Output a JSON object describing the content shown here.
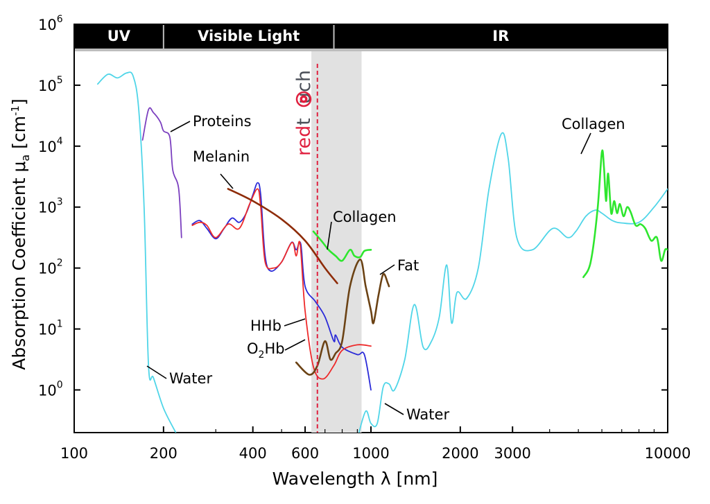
{
  "chart_data": {
    "type": "line",
    "title": "",
    "xlabel": "Wavelength λ [nm]",
    "ylabel": "Absorption Coefficient μa [cm-1]",
    "ylabel_parts": {
      "main": "Absorption Coefficient μ",
      "sub": "a",
      "unit": " [cm",
      "exp": "-1",
      "close": "]"
    },
    "xscale": "log",
    "yscale": "log",
    "xlim": [
      100,
      10000
    ],
    "ylim_exp": [
      -0.7,
      6
    ],
    "x_ticks": [
      {
        "value": 100,
        "label": "100"
      },
      {
        "value": 200,
        "label": "200"
      },
      {
        "value": 400,
        "label": "400"
      },
      {
        "value": 600,
        "label": "600"
      },
      {
        "value": 1000,
        "label": "1000"
      },
      {
        "value": 2000,
        "label": "2000"
      },
      {
        "value": 3000,
        "label": "3000"
      },
      {
        "value": 10000,
        "label": "10000"
      }
    ],
    "y_ticks": [
      {
        "exp": 0,
        "base": "10",
        "sup": "0"
      },
      {
        "exp": 1,
        "base": "10",
        "sup": "1"
      },
      {
        "exp": 2,
        "base": "10",
        "sup": "2"
      },
      {
        "exp": 3,
        "base": "10",
        "sup": "3"
      },
      {
        "exp": 4,
        "base": "10",
        "sup": "4"
      },
      {
        "exp": 5,
        "base": "10",
        "sup": "5"
      },
      {
        "exp": 6,
        "base": "10",
        "sup": "6"
      }
    ],
    "bands": [
      {
        "label": "UV",
        "from": 100,
        "to": 200
      },
      {
        "label": "Visible Light",
        "from": 200,
        "to": 750
      },
      {
        "label": "IR",
        "from": 750,
        "to": 10000
      }
    ],
    "highlight_region": {
      "from": 630,
      "to": 930,
      "color": "#e1e1e1"
    },
    "marker_line": {
      "wavelength": 660,
      "color": "#e0203f"
    },
    "brand": {
      "part1": "red",
      "part2": "t",
      "part3": "uch",
      "color1": "#e0203f",
      "color2": "#4a4e57"
    },
    "series": [
      {
        "name": "Water",
        "color": "#4fd5e8",
        "points": [
          [
            120,
            5.02
          ],
          [
            130,
            5.18
          ],
          [
            140,
            5.12
          ],
          [
            150,
            5.2
          ],
          [
            158,
            5.15
          ],
          [
            165,
            4.6
          ],
          [
            172,
            3.0
          ],
          [
            178,
            0.4
          ],
          [
            185,
            0.2
          ],
          [
            200,
            -0.3
          ],
          [
            220,
            -0.7
          ]
        ]
      },
      {
        "name": "Water",
        "color": "#4fd5e8",
        "points": [
          [
            900,
            -0.8
          ],
          [
            960,
            -0.35
          ],
          [
            1000,
            -0.55
          ],
          [
            1050,
            -0.55
          ],
          [
            1100,
            0.05
          ],
          [
            1150,
            0.1
          ],
          [
            1200,
            0.0
          ],
          [
            1300,
            0.5
          ],
          [
            1400,
            1.4
          ],
          [
            1500,
            0.7
          ],
          [
            1600,
            0.8
          ],
          [
            1700,
            1.2
          ],
          [
            1800,
            2.05
          ],
          [
            1870,
            1.1
          ],
          [
            1950,
            1.6
          ],
          [
            2100,
            1.5
          ],
          [
            2300,
            2.0
          ],
          [
            2500,
            3.3
          ],
          [
            2750,
            4.2
          ],
          [
            2900,
            3.8
          ],
          [
            3100,
            2.5
          ],
          [
            3500,
            2.3
          ],
          [
            4100,
            2.65
          ],
          [
            4600,
            2.5
          ],
          [
            4900,
            2.6
          ],
          [
            5300,
            2.85
          ],
          [
            5700,
            2.95
          ],
          [
            6000,
            2.9
          ],
          [
            6500,
            2.78
          ],
          [
            7000,
            2.74
          ],
          [
            8000,
            2.75
          ],
          [
            9000,
            3.0
          ],
          [
            10000,
            3.3
          ]
        ]
      },
      {
        "name": "Proteins",
        "color": "#7b3fbf",
        "points": [
          [
            170,
            4.1
          ],
          [
            178,
            4.6
          ],
          [
            185,
            4.55
          ],
          [
            195,
            4.4
          ],
          [
            200,
            4.25
          ],
          [
            210,
            4.15
          ],
          [
            215,
            3.6
          ],
          [
            225,
            3.3
          ],
          [
            230,
            2.5
          ]
        ]
      },
      {
        "name": "HHb",
        "color": "#2a2ad8",
        "points": [
          [
            250,
            2.72
          ],
          [
            265,
            2.78
          ],
          [
            280,
            2.65
          ],
          [
            300,
            2.48
          ],
          [
            320,
            2.65
          ],
          [
            340,
            2.82
          ],
          [
            360,
            2.75
          ],
          [
            380,
            2.9
          ],
          [
            400,
            3.2
          ],
          [
            415,
            3.4
          ],
          [
            425,
            3.2
          ],
          [
            440,
            2.2
          ],
          [
            460,
            1.95
          ],
          [
            500,
            2.1
          ],
          [
            540,
            2.42
          ],
          [
            560,
            2.3
          ],
          [
            580,
            2.4
          ],
          [
            600,
            1.7
          ],
          [
            650,
            1.45
          ],
          [
            700,
            1.2
          ],
          [
            750,
            0.8
          ],
          [
            760,
            0.9
          ],
          [
            800,
            0.7
          ],
          [
            900,
            0.58
          ],
          [
            950,
            0.58
          ],
          [
            1000,
            0.0
          ]
        ]
      },
      {
        "name": "O2Hb",
        "color": "#ee2a2a",
        "points": [
          [
            250,
            2.7
          ],
          [
            265,
            2.75
          ],
          [
            280,
            2.7
          ],
          [
            300,
            2.5
          ],
          [
            330,
            2.72
          ],
          [
            360,
            2.65
          ],
          [
            390,
            3.05
          ],
          [
            415,
            3.3
          ],
          [
            425,
            3.0
          ],
          [
            440,
            2.1
          ],
          [
            470,
            2.0
          ],
          [
            500,
            2.1
          ],
          [
            542,
            2.42
          ],
          [
            560,
            2.2
          ],
          [
            577,
            2.4
          ],
          [
            600,
            1.3
          ],
          [
            640,
            0.38
          ],
          [
            690,
            0.18
          ],
          [
            750,
            0.4
          ],
          [
            800,
            0.65
          ],
          [
            900,
            0.74
          ],
          [
            1000,
            0.72
          ]
        ]
      },
      {
        "name": "Melanin",
        "color": "#8e2c08",
        "points": [
          [
            330,
            3.3
          ],
          [
            400,
            3.1
          ],
          [
            500,
            2.8
          ],
          [
            600,
            2.45
          ],
          [
            700,
            2.0
          ],
          [
            770,
            1.75
          ]
        ]
      },
      {
        "name": "Collagen",
        "color": "#2ee62e",
        "points": [
          [
            640,
            2.6
          ],
          [
            680,
            2.45
          ],
          [
            720,
            2.3
          ],
          [
            760,
            2.2
          ],
          [
            800,
            2.12
          ],
          [
            850,
            2.3
          ],
          [
            880,
            2.2
          ],
          [
            920,
            2.18
          ],
          [
            950,
            2.28
          ],
          [
            1000,
            2.3
          ]
        ]
      },
      {
        "name": "Fat",
        "color": "#6b4214",
        "points": [
          [
            560,
            0.45
          ],
          [
            620,
            0.25
          ],
          [
            660,
            0.4
          ],
          [
            700,
            0.8
          ],
          [
            730,
            0.5
          ],
          [
            760,
            0.6
          ],
          [
            800,
            0.8
          ],
          [
            850,
            1.7
          ],
          [
            920,
            2.14
          ],
          [
            960,
            1.7
          ],
          [
            1000,
            1.3
          ],
          [
            1020,
            1.1
          ],
          [
            1060,
            1.55
          ],
          [
            1100,
            1.9
          ],
          [
            1140,
            1.75
          ],
          [
            1150,
            1.7
          ]
        ]
      },
      {
        "name": "Collagen",
        "color": "#2ee62e",
        "points": [
          [
            5200,
            1.85
          ],
          [
            5500,
            2.1
          ],
          [
            5800,
            2.95
          ],
          [
            6000,
            3.9
          ],
          [
            6100,
            3.65
          ],
          [
            6200,
            3.1
          ],
          [
            6300,
            3.55
          ],
          [
            6450,
            2.9
          ],
          [
            6600,
            3.1
          ],
          [
            6750,
            2.9
          ],
          [
            6900,
            3.05
          ],
          [
            7100,
            2.85
          ],
          [
            7300,
            3.0
          ],
          [
            7500,
            2.92
          ],
          [
            7800,
            2.7
          ],
          [
            8100,
            2.72
          ],
          [
            8400,
            2.65
          ],
          [
            8800,
            2.45
          ],
          [
            9200,
            2.5
          ],
          [
            9500,
            2.12
          ],
          [
            9800,
            2.3
          ],
          [
            10000,
            2.3
          ]
        ]
      }
    ],
    "annotations": [
      {
        "label": "Proteins"
      },
      {
        "label": "Melanin"
      },
      {
        "label": "Collagen"
      },
      {
        "label": "Fat"
      },
      {
        "label": "HHb"
      },
      {
        "label": "O2Hb",
        "base": "O",
        "sub": "2",
        "rest": "Hb"
      },
      {
        "label": "Water"
      },
      {
        "label": "Water"
      },
      {
        "label": "Collagen"
      }
    ]
  }
}
